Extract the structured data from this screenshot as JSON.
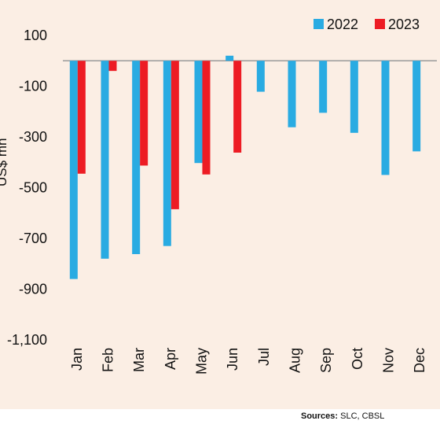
{
  "chart_data": {
    "type": "bar",
    "categories": [
      "Jan",
      "Feb",
      "Mar",
      "Apr",
      "May",
      "Jun",
      "Jul",
      "Aug",
      "Sep",
      "Oct",
      "Nov",
      "Dec"
    ],
    "series": [
      {
        "name": "2022",
        "color": "#29abe2",
        "values": [
          -860,
          -780,
          -762,
          -730,
          -403,
          20,
          -122,
          -262,
          -205,
          -284,
          -450,
          -357
        ]
      },
      {
        "name": "2023",
        "color": "#ed1c24",
        "values": [
          -445,
          -40,
          -413,
          -585,
          -448,
          -362,
          null,
          null,
          null,
          null,
          null,
          null
        ]
      }
    ],
    "ylabel": "US$ mn",
    "yticks": [
      100,
      -100,
      -300,
      -500,
      -700,
      -900,
      -1100
    ],
    "ytick_labels": [
      "100",
      "-100",
      "-300",
      "-500",
      "-700",
      "-900",
      "-1,100"
    ],
    "ylim": [
      -1100,
      100
    ],
    "legend_position": "top-right",
    "background_color": "#fbeee4",
    "zero_line_color": "#9a9a9a"
  },
  "source": {
    "label": "Sources:",
    "text": "SLC, CBSL"
  }
}
